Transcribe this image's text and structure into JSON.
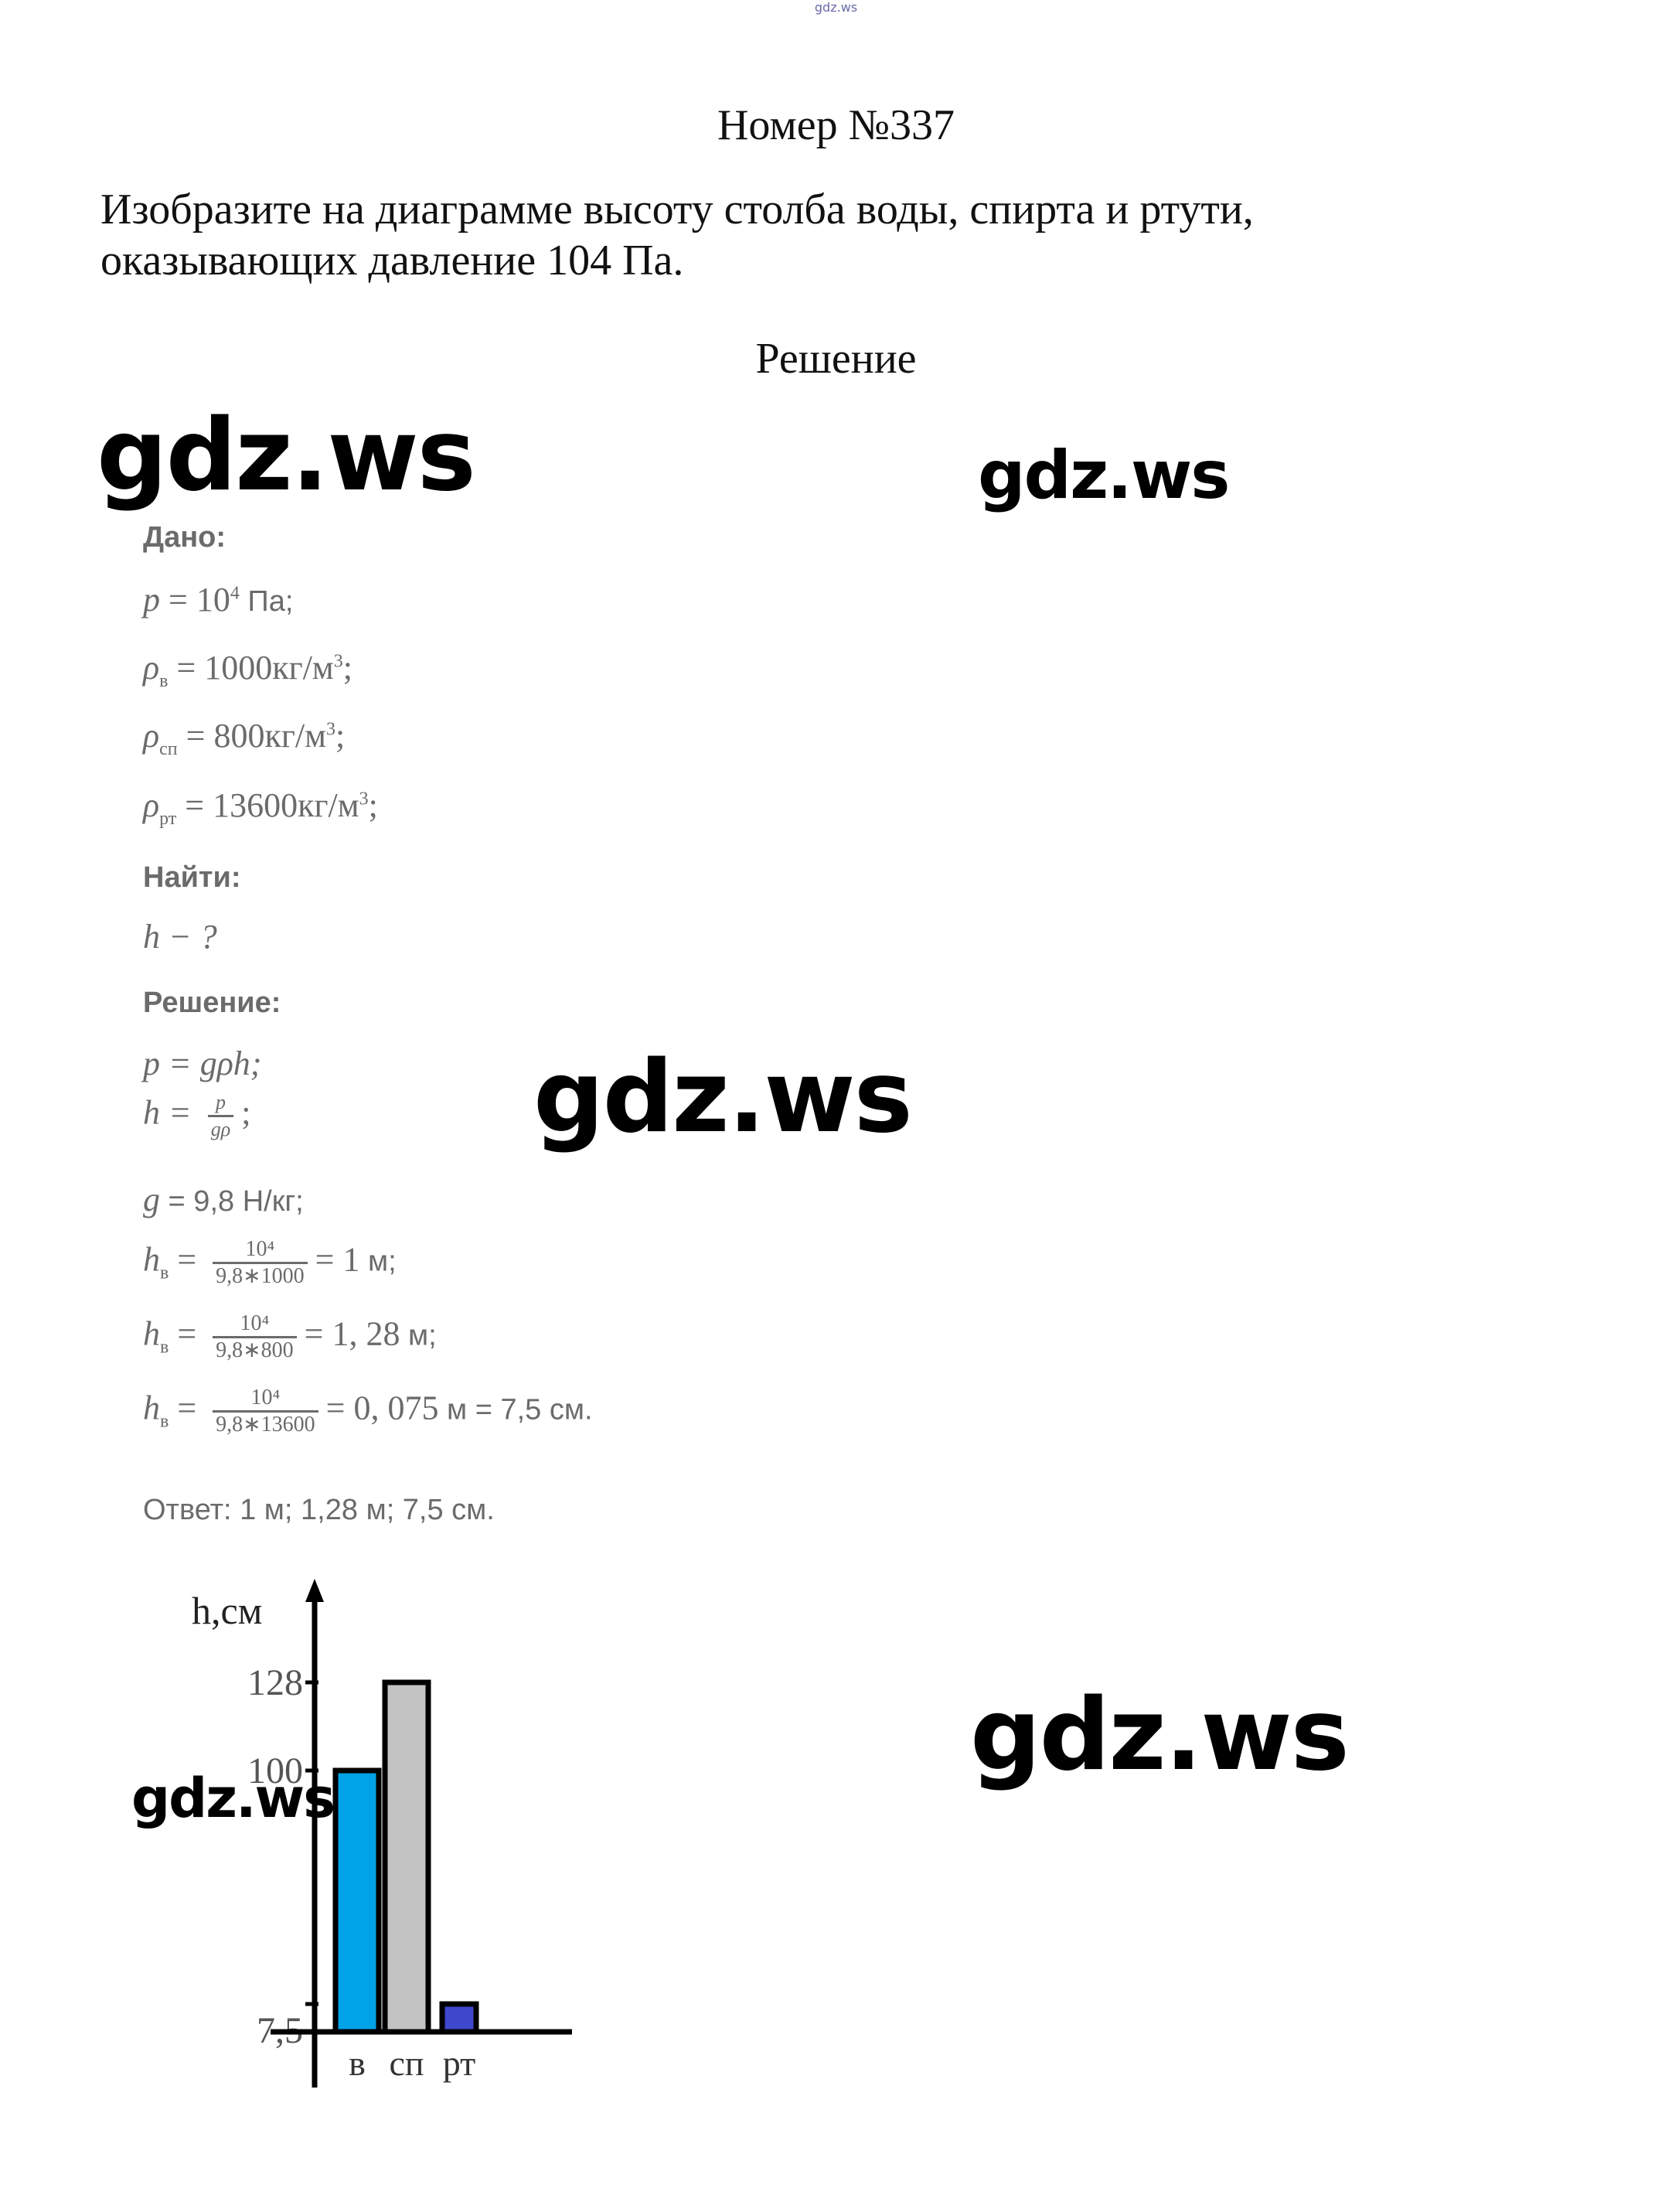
{
  "header": {
    "tiny_watermark": "gdz.ws"
  },
  "title": "Номер №337",
  "task": {
    "line1": "Изобразите на диаграмме высоту столба воды, спирта и ртути,",
    "line2": "оказывающих давление 104 Па."
  },
  "solution_heading": "Решение",
  "watermarks": [
    "gdz.ws",
    "gdz.ws",
    "gdz.ws",
    "gdz.ws",
    "gdz.ws"
  ],
  "solution": {
    "given_label": "Дано:",
    "p": {
      "lhs": "p",
      "eq": " = 10",
      "exp": "4",
      "unit": " Па;"
    },
    "rho_water": {
      "sym": "ρ",
      "sub": "в",
      "val": " = 1000кг/м",
      "exp": "3",
      "tail": ";"
    },
    "rho_spirit": {
      "sym": "ρ",
      "sub": "сп",
      "val": " = 800кг/м",
      "exp": "3",
      "tail": ";"
    },
    "rho_mercury": {
      "sym": "ρ",
      "sub": "рт",
      "val": " = 13600кг/м",
      "exp": "3",
      "tail": ";"
    },
    "find_label": "Найти:",
    "find": "h − ?",
    "solution_label": "Решение:",
    "formula1": "p = gρh;",
    "formula2": {
      "lhs": "h = ",
      "num": "p",
      "den": "gρ",
      "tail": ";"
    },
    "g_value": {
      "lhs": "g",
      "rhs": " = 9,8 Н/кг;"
    },
    "h1": {
      "lhs": "h",
      "sub": "в",
      "num": "10⁴",
      "den": "9,8∗1000",
      "res": "= 1",
      "unit": " м;"
    },
    "h2": {
      "lhs": "h",
      "sub": "в",
      "num": "10⁴",
      "den": "9,8∗800",
      "res": "= 1, 28",
      "unit": " м;"
    },
    "h3": {
      "lhs": "h",
      "sub": "в",
      "num": "10⁴",
      "den": "9,8∗13600",
      "res": "= 0, 075",
      "unit": " м = 7,5 см."
    },
    "answer": "Ответ: 1 м; 1,28 м; 7,5 см."
  },
  "chart_data": {
    "type": "bar",
    "ylabel": "h,см",
    "categories": [
      "в",
      "сп",
      "рт"
    ],
    "values": [
      100,
      128,
      7.5
    ],
    "y_ticks": [
      "128",
      "100",
      "7,5"
    ],
    "colors": [
      "#00a2e8",
      "#c3c3c3",
      "#3f48cc"
    ],
    "grid": false,
    "legend": "none"
  }
}
